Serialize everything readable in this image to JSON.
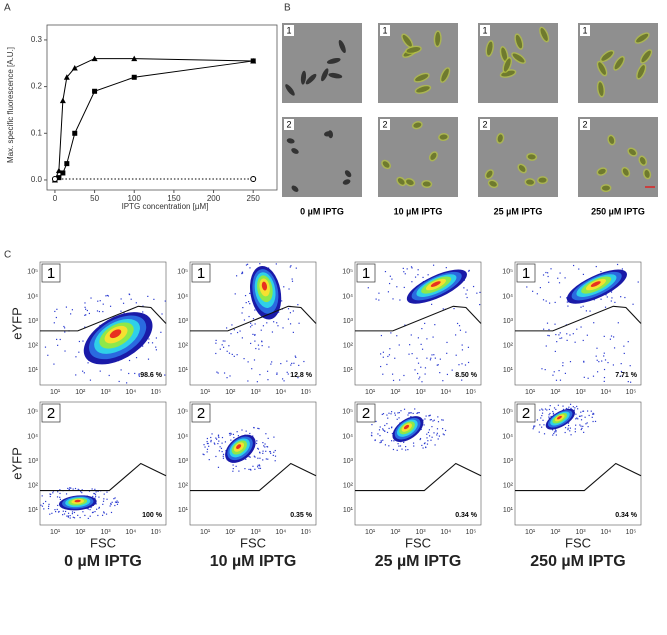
{
  "panel_labels": [
    "A",
    "B",
    "C"
  ],
  "conditions": [
    "0 µM IPTG",
    "10 µM IPTG",
    "25 µM IPTG",
    "250 µM IPTG"
  ],
  "row_labels": [
    "1",
    "2"
  ],
  "chart_data": {
    "type": "line",
    "x_label": "IPTG concentration [µM]",
    "y_label": "Max. specific fluorescence [A.U.]",
    "xlim": [
      -10,
      280
    ],
    "ylim": [
      -0.0215,
      0.332
    ],
    "xticks": [
      0,
      50,
      100,
      150,
      200,
      250
    ],
    "yticks": [
      {
        "value": 0,
        "label": "0.0"
      },
      {
        "value": 0.1,
        "label": "0.1"
      },
      {
        "value": 0.2,
        "label": "0.2"
      },
      {
        "value": 0.3,
        "label": "0.3"
      }
    ],
    "series": [
      {
        "color": "#000000",
        "marker": "triangle",
        "dash": "solid",
        "x": [
          0,
          5,
          10,
          15,
          25,
          50,
          100,
          250
        ],
        "values": [
          0,
          0.02,
          0.17,
          0.22,
          0.24,
          0.26,
          0.26,
          0.255
        ]
      },
      {
        "color": "#000000",
        "marker": "square",
        "dash": "solid",
        "x": [
          0,
          5,
          10,
          15,
          25,
          50,
          100,
          250
        ],
        "values": [
          0,
          0.005,
          0.015,
          0.035,
          0.1,
          0.19,
          0.22,
          0.255
        ]
      },
      {
        "color": "#000000",
        "marker": "open-circle",
        "dash": "dotted",
        "x": [
          0,
          250
        ],
        "values": [
          0.002,
          0.002
        ]
      }
    ]
  },
  "flow": {
    "x_label": "FSC",
    "y_label": "eYFP",
    "ticks": [
      "10¹",
      "10²",
      "10³",
      "10⁴",
      "10⁵"
    ],
    "percentages": [
      [
        "98.6 %",
        "12.8 %",
        "8.50 %",
        "7.71 %"
      ],
      [
        "100 %",
        "0.35 %",
        "0.34 %",
        "0.34 %"
      ]
    ]
  }
}
